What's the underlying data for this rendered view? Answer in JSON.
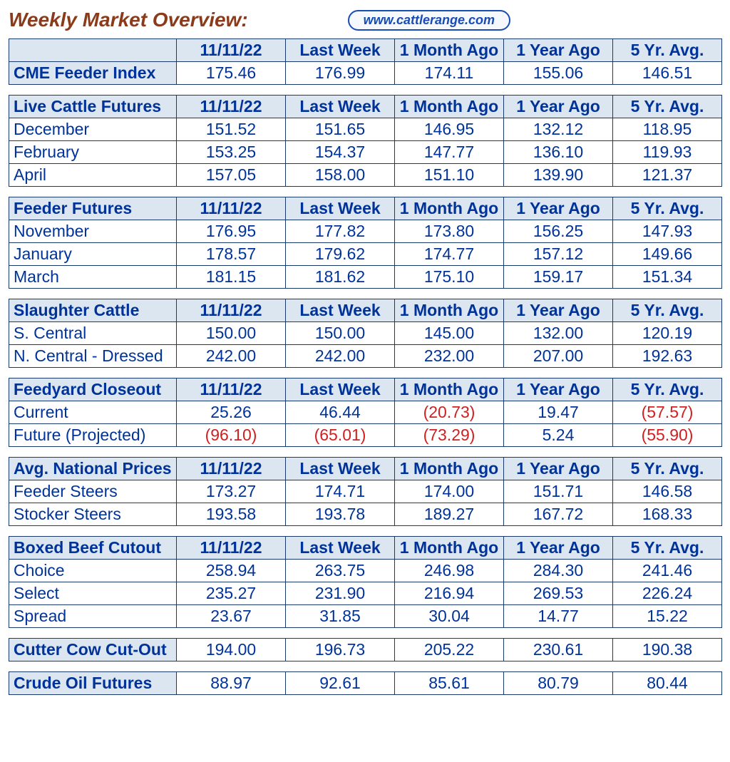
{
  "page": {
    "title": "Weekly Market Overview:",
    "url_pill": "www.cattlerange.com"
  },
  "columns": [
    "11/11/22",
    "Last Week",
    "1 Month Ago",
    "1 Year Ago",
    "5 Yr. Avg."
  ],
  "sections": [
    {
      "header_label": "",
      "rows": [
        {
          "label": "CME Feeder Index",
          "label_bold": true,
          "values": [
            "175.46",
            "176.99",
            "174.11",
            "155.06",
            "146.51"
          ],
          "neg": [
            false,
            false,
            false,
            false,
            false
          ]
        }
      ]
    },
    {
      "header_label": "Live Cattle Futures",
      "rows": [
        {
          "label": "December",
          "values": [
            "151.52",
            "151.65",
            "146.95",
            "132.12",
            "118.95"
          ],
          "neg": [
            false,
            false,
            false,
            false,
            false
          ]
        },
        {
          "label": "February",
          "values": [
            "153.25",
            "154.37",
            "147.77",
            "136.10",
            "119.93"
          ],
          "neg": [
            false,
            false,
            false,
            false,
            false
          ]
        },
        {
          "label": "April",
          "values": [
            "157.05",
            "158.00",
            "151.10",
            "139.90",
            "121.37"
          ],
          "neg": [
            false,
            false,
            false,
            false,
            false
          ]
        }
      ]
    },
    {
      "header_label": "Feeder Futures",
      "rows": [
        {
          "label": "November",
          "values": [
            "176.95",
            "177.82",
            "173.80",
            "156.25",
            "147.93"
          ],
          "neg": [
            false,
            false,
            false,
            false,
            false
          ]
        },
        {
          "label": "January",
          "values": [
            "178.57",
            "179.62",
            "174.77",
            "157.12",
            "149.66"
          ],
          "neg": [
            false,
            false,
            false,
            false,
            false
          ]
        },
        {
          "label": "March",
          "values": [
            "181.15",
            "181.62",
            "175.10",
            "159.17",
            "151.34"
          ],
          "neg": [
            false,
            false,
            false,
            false,
            false
          ]
        }
      ]
    },
    {
      "header_label": "Slaughter Cattle",
      "rows": [
        {
          "label": "S. Central",
          "values": [
            "150.00",
            "150.00",
            "145.00",
            "132.00",
            "120.19"
          ],
          "neg": [
            false,
            false,
            false,
            false,
            false
          ]
        },
        {
          "label": "N. Central - Dressed",
          "values": [
            "242.00",
            "242.00",
            "232.00",
            "207.00",
            "192.63"
          ],
          "neg": [
            false,
            false,
            false,
            false,
            false
          ]
        }
      ]
    },
    {
      "header_label": "Feedyard Closeout",
      "rows": [
        {
          "label": "Current",
          "values": [
            "25.26",
            "46.44",
            "(20.73)",
            "19.47",
            "(57.57)"
          ],
          "neg": [
            false,
            false,
            true,
            false,
            true
          ]
        },
        {
          "label": "Future (Projected)",
          "values": [
            "(96.10)",
            "(65.01)",
            "(73.29)",
            "5.24",
            "(55.90)"
          ],
          "neg": [
            true,
            true,
            true,
            false,
            true
          ]
        }
      ]
    },
    {
      "header_label": "Avg. National Prices",
      "rows": [
        {
          "label": "Feeder Steers",
          "values": [
            "173.27",
            "174.71",
            "174.00",
            "151.71",
            "146.58"
          ],
          "neg": [
            false,
            false,
            false,
            false,
            false
          ]
        },
        {
          "label": "Stocker Steers",
          "values": [
            "193.58",
            "193.78",
            "189.27",
            "167.72",
            "168.33"
          ],
          "neg": [
            false,
            false,
            false,
            false,
            false
          ]
        }
      ]
    },
    {
      "header_label": "Boxed Beef Cutout",
      "rows": [
        {
          "label": "Choice",
          "values": [
            "258.94",
            "263.75",
            "246.98",
            "284.30",
            "241.46"
          ],
          "neg": [
            false,
            false,
            false,
            false,
            false
          ]
        },
        {
          "label": "Select",
          "values": [
            "235.27",
            "231.90",
            "216.94",
            "269.53",
            "226.24"
          ],
          "neg": [
            false,
            false,
            false,
            false,
            false
          ]
        },
        {
          "label": " Spread",
          "values": [
            "23.67",
            "31.85",
            "30.04",
            "14.77",
            "15.22"
          ],
          "neg": [
            false,
            false,
            false,
            false,
            false
          ]
        }
      ]
    },
    {
      "header_label": "Cutter Cow Cut-Out",
      "single_row": true,
      "values": [
        "194.00",
        "196.73",
        "205.22",
        "230.61",
        "190.38"
      ],
      "neg": [
        false,
        false,
        false,
        false,
        false
      ]
    },
    {
      "header_label": "Crude Oil Futures",
      "single_row": true,
      "values": [
        "88.97",
        "92.61",
        "85.61",
        "80.79",
        "80.44"
      ],
      "neg": [
        false,
        false,
        false,
        false,
        false
      ]
    }
  ],
  "style": {
    "title_color": "#8b3a1a",
    "header_bg": "#dce6f0",
    "text_color": "#003399",
    "negative_color": "#d02020",
    "border_color": "#1a3a6e",
    "font_size_cell": 23,
    "font_size_title": 28
  }
}
